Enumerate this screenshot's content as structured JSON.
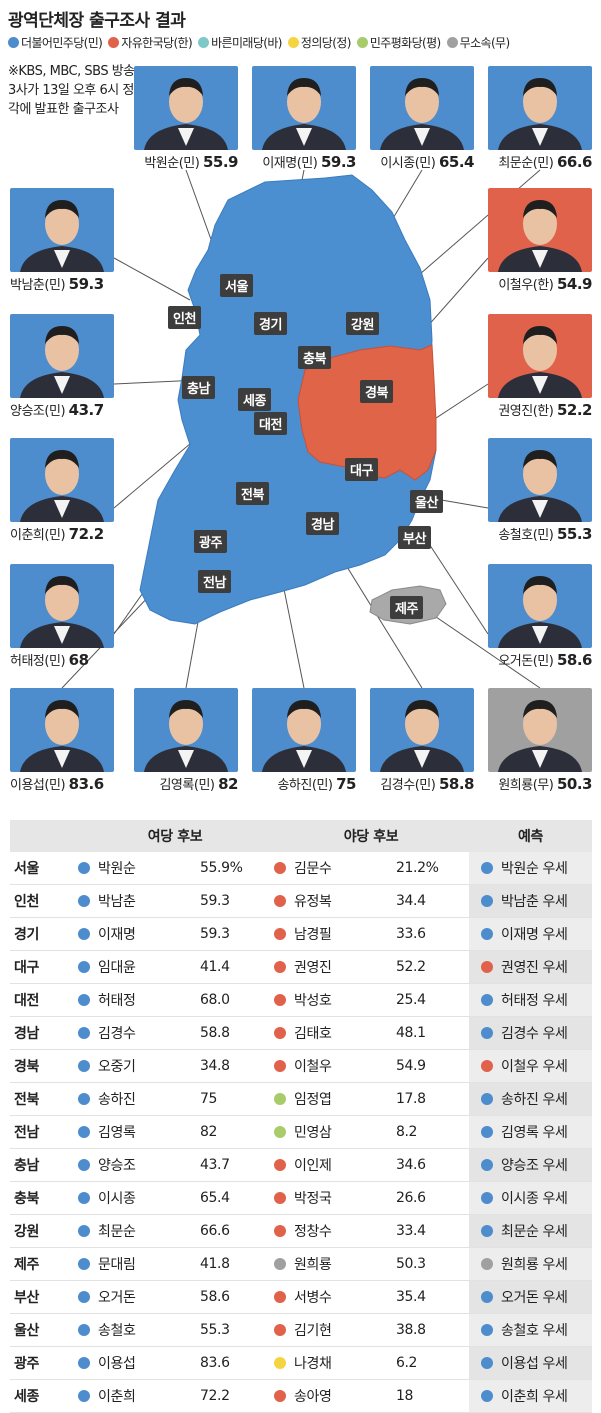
{
  "title": "광역단체장 출구조사 결과",
  "colors": {
    "minju": "#4d8ccd",
    "hanguk": "#e1624a",
    "bareun": "#7ec8c8",
    "jeongui": "#f5d442",
    "pyeonghwa": "#a8cc6a",
    "independent": "#a0a0a0",
    "map_blue": "#4b8fd1",
    "map_red": "#e06448",
    "label_bg": "#3d3d3d"
  },
  "legend": [
    {
      "label": "더불어민주당(민)",
      "color": "#4d8ccd"
    },
    {
      "label": "자유한국당(한)",
      "color": "#e1624a"
    },
    {
      "label": "바른미래당(바)",
      "color": "#7ec8c8"
    },
    {
      "label": "정의당(정)",
      "color": "#f5d442"
    },
    {
      "label": "민주평화당(평)",
      "color": "#a8cc6a"
    },
    {
      "label": "무소속(무)",
      "color": "#a0a0a0"
    }
  ],
  "note": "※KBS, MBC, SBS 방송 3사가 13일 오후 6시 정각에 발표한 출구조사",
  "map_regions": [
    "서울",
    "인천",
    "경기",
    "강원",
    "충북",
    "경북",
    "충남",
    "세종",
    "대전",
    "대구",
    "전북",
    "울산",
    "경남",
    "부산",
    "광주",
    "전남",
    "제주"
  ],
  "chart_data": {
    "type": "table",
    "winners": [
      {
        "name": "박원순",
        "party": "민",
        "value": "55.9",
        "party_color": "#4d8ccd"
      },
      {
        "name": "이재명",
        "party": "민",
        "value": "59.3",
        "party_color": "#4d8ccd"
      },
      {
        "name": "이시종",
        "party": "민",
        "value": "65.4",
        "party_color": "#4d8ccd"
      },
      {
        "name": "최문순",
        "party": "민",
        "value": "66.6",
        "party_color": "#4d8ccd"
      },
      {
        "name": "박남춘",
        "party": "민",
        "value": "59.3",
        "party_color": "#4d8ccd"
      },
      {
        "name": "이철우",
        "party": "한",
        "value": "54.9",
        "party_color": "#e1624a"
      },
      {
        "name": "양승조",
        "party": "민",
        "value": "43.7",
        "party_color": "#4d8ccd"
      },
      {
        "name": "권영진",
        "party": "한",
        "value": "52.2",
        "party_color": "#e1624a"
      },
      {
        "name": "이춘희",
        "party": "민",
        "value": "72.2",
        "party_color": "#4d8ccd"
      },
      {
        "name": "송철호",
        "party": "민",
        "value": "55.3",
        "party_color": "#4d8ccd"
      },
      {
        "name": "허태정",
        "party": "민",
        "value": "68",
        "party_color": "#4d8ccd"
      },
      {
        "name": "오거돈",
        "party": "민",
        "value": "58.6",
        "party_color": "#4d8ccd"
      },
      {
        "name": "이용섭",
        "party": "민",
        "value": "83.6",
        "party_color": "#4d8ccd"
      },
      {
        "name": "김영록",
        "party": "민",
        "value": "82",
        "party_color": "#4d8ccd"
      },
      {
        "name": "송하진",
        "party": "민",
        "value": "75",
        "party_color": "#4d8ccd"
      },
      {
        "name": "김경수",
        "party": "민",
        "value": "58.8",
        "party_color": "#4d8ccd"
      },
      {
        "name": "원희룡",
        "party": "무",
        "value": "50.3",
        "party_color": "#a0a0a0"
      }
    ],
    "table": {
      "headers": [
        "",
        "여당 후보",
        "",
        "야당 후보",
        "",
        "예측"
      ],
      "rows": [
        {
          "region": "서울",
          "ruling": "박원순",
          "ruling_pct": "55.9%",
          "opp": "김문수",
          "opp_pct": "21.2%",
          "opp_color": "#e1624a",
          "pred": "박원순 우세",
          "pred_color": "#4d8ccd"
        },
        {
          "region": "인천",
          "ruling": "박남춘",
          "ruling_pct": "59.3",
          "opp": "유정복",
          "opp_pct": "34.4",
          "opp_color": "#e1624a",
          "pred": "박남춘 우세",
          "pred_color": "#4d8ccd"
        },
        {
          "region": "경기",
          "ruling": "이재명",
          "ruling_pct": "59.3",
          "opp": "남경필",
          "opp_pct": "33.6",
          "opp_color": "#e1624a",
          "pred": "이재명 우세",
          "pred_color": "#4d8ccd"
        },
        {
          "region": "대구",
          "ruling": "임대윤",
          "ruling_pct": "41.4",
          "opp": "권영진",
          "opp_pct": "52.2",
          "opp_color": "#e1624a",
          "pred": "권영진 우세",
          "pred_color": "#e1624a"
        },
        {
          "region": "대전",
          "ruling": "허태정",
          "ruling_pct": "68.0",
          "opp": "박성호",
          "opp_pct": "25.4",
          "opp_color": "#e1624a",
          "pred": "허태정 우세",
          "pred_color": "#4d8ccd"
        },
        {
          "region": "경남",
          "ruling": "김경수",
          "ruling_pct": "58.8",
          "opp": "김태호",
          "opp_pct": "48.1",
          "opp_color": "#e1624a",
          "pred": "김경수 우세",
          "pred_color": "#4d8ccd"
        },
        {
          "region": "경북",
          "ruling": "오중기",
          "ruling_pct": "34.8",
          "opp": "이철우",
          "opp_pct": "54.9",
          "opp_color": "#e1624a",
          "pred": "이철우 우세",
          "pred_color": "#e1624a"
        },
        {
          "region": "전북",
          "ruling": "송하진",
          "ruling_pct": "75",
          "opp": "임정엽",
          "opp_pct": "17.8",
          "opp_color": "#a8cc6a",
          "pred": "송하진 우세",
          "pred_color": "#4d8ccd"
        },
        {
          "region": "전남",
          "ruling": "김영록",
          "ruling_pct": "82",
          "opp": "민영삼",
          "opp_pct": "8.2",
          "opp_color": "#a8cc6a",
          "pred": "김영록 우세",
          "pred_color": "#4d8ccd"
        },
        {
          "region": "충남",
          "ruling": "양승조",
          "ruling_pct": "43.7",
          "opp": "이인제",
          "opp_pct": "34.6",
          "opp_color": "#e1624a",
          "pred": "양승조 우세",
          "pred_color": "#4d8ccd"
        },
        {
          "region": "충북",
          "ruling": "이시종",
          "ruling_pct": "65.4",
          "opp": "박정국",
          "opp_pct": "26.6",
          "opp_color": "#e1624a",
          "pred": "이시종 우세",
          "pred_color": "#4d8ccd"
        },
        {
          "region": "강원",
          "ruling": "최문순",
          "ruling_pct": "66.6",
          "opp": "정창수",
          "opp_pct": "33.4",
          "opp_color": "#e1624a",
          "pred": "최문순 우세",
          "pred_color": "#4d8ccd"
        },
        {
          "region": "제주",
          "ruling": "문대림",
          "ruling_pct": "41.8",
          "opp": "원희룡",
          "opp_pct": "50.3",
          "opp_color": "#a0a0a0",
          "pred": "원희룡 우세",
          "pred_color": "#a0a0a0"
        },
        {
          "region": "부산",
          "ruling": "오거돈",
          "ruling_pct": "58.6",
          "opp": "서병수",
          "opp_pct": "35.4",
          "opp_color": "#e1624a",
          "pred": "오거돈 우세",
          "pred_color": "#4d8ccd"
        },
        {
          "region": "울산",
          "ruling": "송철호",
          "ruling_pct": "55.3",
          "opp": "김기현",
          "opp_pct": "38.8",
          "opp_color": "#e1624a",
          "pred": "송철호 우세",
          "pred_color": "#4d8ccd"
        },
        {
          "region": "광주",
          "ruling": "이용섭",
          "ruling_pct": "83.6",
          "opp": "나경채",
          "opp_pct": "6.2",
          "opp_color": "#f5d442",
          "pred": "이용섭 우세",
          "pred_color": "#4d8ccd"
        },
        {
          "region": "세종",
          "ruling": "이춘희",
          "ruling_pct": "72.2",
          "opp": "송아영",
          "opp_pct": "18",
          "opp_color": "#e1624a",
          "pred": "이춘희 우세",
          "pred_color": "#4d8ccd"
        }
      ]
    }
  }
}
